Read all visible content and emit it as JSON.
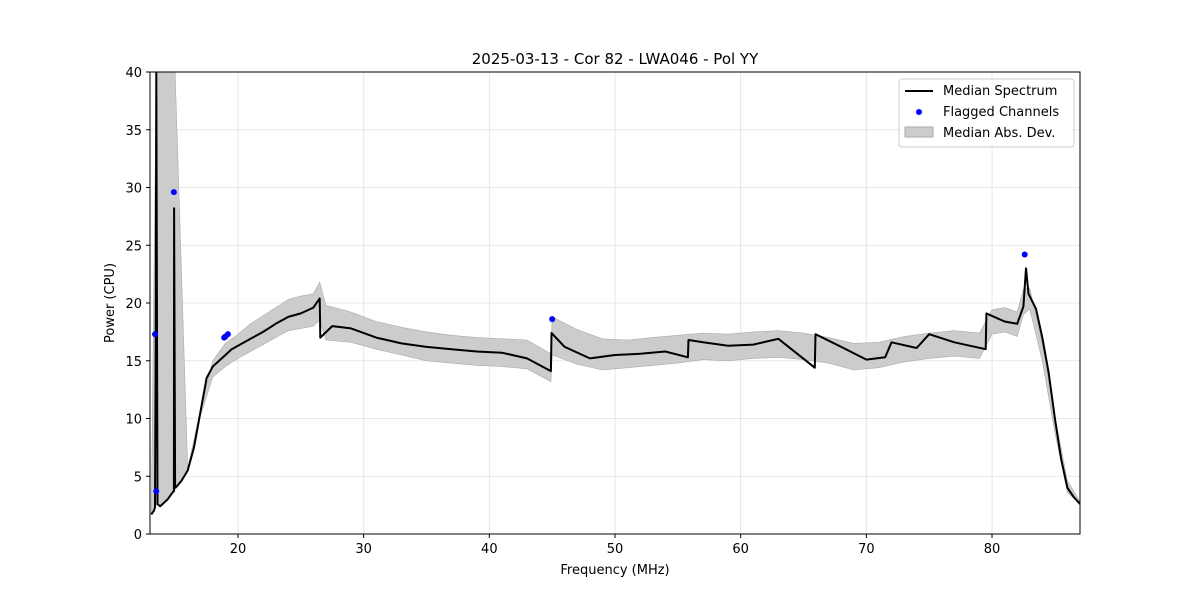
{
  "chart_data": {
    "type": "line",
    "title": "2025-03-13 - Cor 82 - LWA046 - Pol YY",
    "xlabel": "Frequency (MHz)",
    "ylabel": "Power (CPU)",
    "xlim": [
      13.0,
      87.0
    ],
    "ylim": [
      0,
      40
    ],
    "xticks": [
      20,
      30,
      40,
      50,
      60,
      70,
      80
    ],
    "yticks": [
      0,
      5,
      10,
      15,
      20,
      25,
      30,
      35,
      40
    ],
    "grid": true,
    "legend": {
      "placement": "top-right",
      "entries": [
        {
          "label": "Median Spectrum",
          "kind": "line",
          "color": "#000000"
        },
        {
          "label": "Flagged Channels",
          "kind": "point",
          "color": "#0000ff"
        },
        {
          "label": "Median Abs. Dev.",
          "kind": "patch",
          "color": "#cccccc"
        }
      ]
    },
    "series": [
      {
        "name": "Median Spectrum",
        "color": "#000000",
        "x": [
          13.1,
          13.3,
          13.4,
          13.45,
          13.5,
          13.6,
          13.7,
          13.8,
          14.0,
          14.2,
          14.4,
          14.6,
          14.8,
          14.9,
          14.92,
          15.0,
          15.2,
          15.5,
          16.0,
          16.5,
          17.0,
          17.5,
          18.0,
          18.5,
          19.0,
          19.5,
          20.0,
          21.0,
          22.0,
          23.0,
          24.0,
          25.0,
          26.0,
          26.5,
          26.55,
          27.5,
          29.0,
          31.0,
          33.0,
          35.0,
          37.0,
          39.0,
          41.0,
          43.0,
          44.9,
          44.95,
          46.0,
          48.0,
          50.0,
          52.0,
          54.0,
          55.8,
          55.85,
          57.0,
          59.0,
          61.0,
          63.0,
          65.9,
          65.95,
          68.0,
          70.0,
          71.5,
          72.0,
          74.0,
          75.0,
          77.0,
          79.5,
          79.55,
          81.0,
          82.0,
          82.5,
          82.7,
          82.9,
          83.5,
          84.0,
          84.5,
          85.0,
          85.5,
          86.0,
          86.5,
          87.0
        ],
        "values": [
          1.7,
          2.0,
          2.3,
          16.5,
          40.0,
          2.6,
          2.5,
          2.4,
          2.6,
          2.8,
          3.0,
          3.3,
          3.6,
          3.7,
          28.2,
          4.0,
          4.2,
          4.6,
          5.5,
          7.5,
          10.5,
          13.5,
          14.5,
          15.0,
          15.5,
          16.0,
          16.3,
          16.9,
          17.5,
          18.2,
          18.8,
          19.1,
          19.6,
          20.4,
          17.0,
          18.0,
          17.8,
          17.0,
          16.5,
          16.2,
          16.0,
          15.8,
          15.7,
          15.2,
          14.1,
          17.4,
          16.2,
          15.2,
          15.5,
          15.6,
          15.8,
          15.3,
          16.8,
          16.6,
          16.3,
          16.4,
          16.9,
          14.4,
          17.3,
          16.2,
          15.1,
          15.3,
          16.6,
          16.1,
          17.3,
          16.6,
          16.0,
          19.1,
          18.4,
          18.2,
          19.7,
          23.0,
          20.8,
          19.5,
          17.0,
          14.0,
          10.0,
          6.5,
          4.0,
          3.2,
          2.6
        ]
      }
    ],
    "band": {
      "name": "Median Abs. Dev.",
      "color": "#cccccc",
      "x": [
        13.1,
        13.5,
        14.0,
        15.0,
        16.0,
        17.0,
        18.0,
        19.0,
        20.0,
        21.0,
        22.0,
        23.0,
        24.0,
        25.0,
        26.0,
        26.5,
        27.0,
        29.0,
        31.0,
        33.0,
        35.0,
        37.0,
        39.0,
        41.0,
        43.0,
        44.9,
        45.0,
        47.0,
        49.0,
        51.0,
        53.0,
        55.0,
        57.0,
        59.0,
        61.0,
        63.0,
        65.0,
        67.0,
        69.0,
        71.0,
        73.0,
        75.0,
        77.0,
        79.0,
        80.0,
        81.0,
        82.0,
        82.5,
        83.0,
        84.0,
        85.0,
        86.0,
        87.0
      ],
      "lower": [
        1.7,
        2.5,
        2.5,
        3.8,
        5.4,
        10.2,
        13.6,
        14.5,
        15.2,
        15.8,
        16.4,
        17.0,
        17.6,
        17.8,
        18.0,
        18.5,
        16.8,
        16.6,
        16.0,
        15.5,
        15.0,
        14.8,
        14.6,
        14.5,
        14.3,
        13.2,
        15.5,
        14.7,
        14.2,
        14.4,
        14.6,
        14.8,
        15.1,
        15.0,
        15.2,
        15.3,
        15.1,
        14.8,
        14.2,
        14.4,
        14.9,
        15.2,
        15.4,
        15.2,
        17.3,
        17.5,
        17.1,
        19.0,
        19.5,
        15.0,
        8.8,
        3.6,
        2.6
      ],
      "upper": [
        1.9,
        40.0,
        40.0,
        40.0,
        5.7,
        10.7,
        15.0,
        16.5,
        17.3,
        18.2,
        18.9,
        19.6,
        20.3,
        20.6,
        20.8,
        21.8,
        19.8,
        19.2,
        18.4,
        17.9,
        17.5,
        17.2,
        17.0,
        16.9,
        16.8,
        15.6,
        18.8,
        17.7,
        16.9,
        16.8,
        17.0,
        17.2,
        17.4,
        17.3,
        17.5,
        17.6,
        17.4,
        17.0,
        16.5,
        16.6,
        17.1,
        17.4,
        17.6,
        17.4,
        19.4,
        19.6,
        19.2,
        21.2,
        21.3,
        16.5,
        10.2,
        4.6,
        2.8
      ]
    },
    "flagged_channels": {
      "name": "Flagged Channels",
      "color": "#0000ff",
      "points": [
        {
          "x": 13.4,
          "y": 17.3
        },
        {
          "x": 13.5,
          "y": 3.7
        },
        {
          "x": 14.9,
          "y": 29.6
        },
        {
          "x": 18.9,
          "y": 17.0
        },
        {
          "x": 19.0,
          "y": 17.1
        },
        {
          "x": 19.2,
          "y": 17.3
        },
        {
          "x": 45.0,
          "y": 18.6
        },
        {
          "x": 82.6,
          "y": 24.2
        }
      ]
    }
  }
}
